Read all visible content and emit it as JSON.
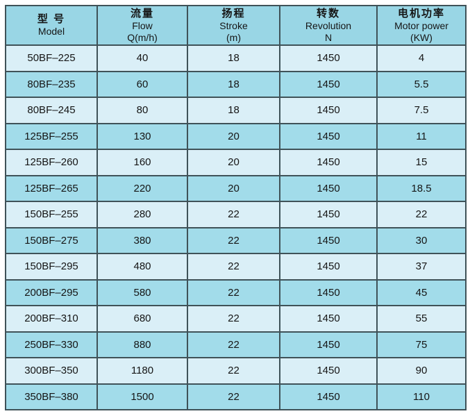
{
  "colors": {
    "page_bg": "#ffffff",
    "header_bg": "#99d6e5",
    "row_light": "#daeff7",
    "row_dark": "#a2dcea",
    "border": "#3f5258",
    "text": "#151515"
  },
  "table": {
    "header": [
      {
        "zh": "型 号",
        "en": "Model",
        "unit": ""
      },
      {
        "zh": "流量",
        "en": "Flow",
        "unit": "Q(m/h)"
      },
      {
        "zh": "扬程",
        "en": "Stroke",
        "unit": "(m)"
      },
      {
        "zh": "转数",
        "en": "Revolution",
        "unit": "N"
      },
      {
        "zh": "电机功率",
        "en": "Motor power",
        "unit": "(KW)"
      }
    ],
    "rows": [
      {
        "model": "50BF–225",
        "flow": "40",
        "stroke": "18",
        "revolution": "1450",
        "power": "4"
      },
      {
        "model": "80BF–235",
        "flow": "60",
        "stroke": "18",
        "revolution": "1450",
        "power": "5.5"
      },
      {
        "model": "80BF–245",
        "flow": "80",
        "stroke": "18",
        "revolution": "1450",
        "power": "7.5"
      },
      {
        "model": "125BF–255",
        "flow": "130",
        "stroke": "20",
        "revolution": "1450",
        "power": "11"
      },
      {
        "model": "125BF–260",
        "flow": "160",
        "stroke": "20",
        "revolution": "1450",
        "power": "15"
      },
      {
        "model": "125BF–265",
        "flow": "220",
        "stroke": "20",
        "revolution": "1450",
        "power": "18.5"
      },
      {
        "model": "150BF–255",
        "flow": "280",
        "stroke": "22",
        "revolution": "1450",
        "power": "22"
      },
      {
        "model": "150BF–275",
        "flow": "380",
        "stroke": "22",
        "revolution": "1450",
        "power": "30"
      },
      {
        "model": "150BF–295",
        "flow": "480",
        "stroke": "22",
        "revolution": "1450",
        "power": "37"
      },
      {
        "model": "200BF–295",
        "flow": "580",
        "stroke": "22",
        "revolution": "1450",
        "power": "45"
      },
      {
        "model": "200BF–310",
        "flow": "680",
        "stroke": "22",
        "revolution": "1450",
        "power": "55"
      },
      {
        "model": "250BF–330",
        "flow": "880",
        "stroke": "22",
        "revolution": "1450",
        "power": "75"
      },
      {
        "model": "300BF–350",
        "flow": "1180",
        "stroke": "22",
        "revolution": "1450",
        "power": "90"
      },
      {
        "model": "350BF–380",
        "flow": "1500",
        "stroke": "22",
        "revolution": "1450",
        "power": "110"
      }
    ]
  }
}
